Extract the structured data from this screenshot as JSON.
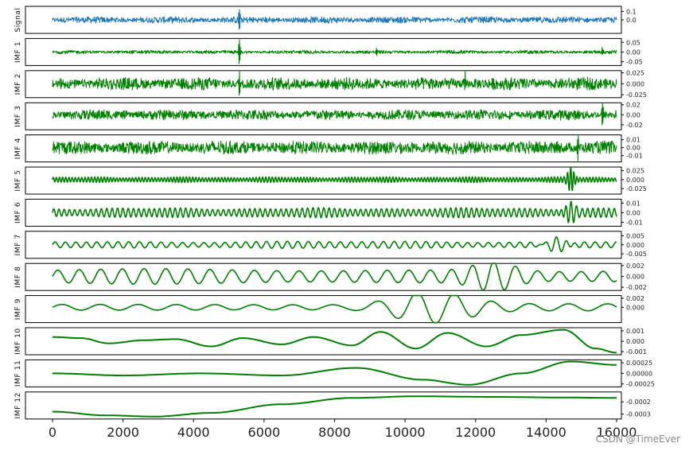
{
  "chart_data": {
    "type": "line",
    "xlim": [
      0,
      16000
    ],
    "xticks": [
      "0",
      "2000",
      "4000",
      "6000",
      "8000",
      "10000",
      "12000",
      "14000",
      "16000"
    ],
    "grid": false,
    "colors": {
      "signal": "#1f77b4",
      "imf": "#008000"
    },
    "panels": [
      {
        "ylabel": "Signal",
        "color": "#1f77b4",
        "ylim": [
          -0.16,
          0.16
        ],
        "yticks": [
          "0.1",
          "0.0"
        ],
        "ytick_values": [
          0.1,
          0.0
        ],
        "kind": "noise",
        "amp": 0.03,
        "spikes": [
          [
            5300,
            0.15
          ]
        ]
      },
      {
        "ylabel": "IMF 1",
        "color": "#008000",
        "ylim": [
          -0.07,
          0.07
        ],
        "yticks": [
          "0.05",
          "0.00",
          "-0.05"
        ],
        "ytick_values": [
          0.05,
          0.0,
          -0.05
        ],
        "kind": "noise",
        "amp": 0.007,
        "spikes": [
          [
            5300,
            0.06
          ],
          [
            9200,
            0.015
          ],
          [
            15600,
            0.02
          ]
        ]
      },
      {
        "ylabel": "IMF 2",
        "color": "#008000",
        "ylim": [
          -0.032,
          0.03
        ],
        "yticks": [
          "0.025",
          "0.000",
          "-0.025"
        ],
        "ytick_values": [
          0.025,
          0.0,
          -0.025
        ],
        "kind": "noise",
        "amp": 0.011,
        "spikes": [
          [
            5300,
            0.028
          ],
          [
            11700,
            0.024
          ]
        ]
      },
      {
        "ylabel": "IMF 3",
        "color": "#008000",
        "ylim": [
          -0.03,
          0.024
        ],
        "yticks": [
          "0.02",
          "0.00",
          "-0.02"
        ],
        "ytick_values": [
          0.02,
          0.0,
          -0.02
        ],
        "kind": "noise",
        "amp": 0.008,
        "spikes": [
          [
            15600,
            -0.02
          ]
        ]
      },
      {
        "ylabel": "IMF 4",
        "color": "#008000",
        "ylim": [
          -0.018,
          0.016
        ],
        "yticks": [
          "0.01",
          "0.00",
          "-0.01"
        ],
        "ytick_values": [
          0.01,
          0.0,
          -0.01
        ],
        "kind": "noise",
        "amp": 0.0065,
        "spikes": [
          [
            14900,
            -0.014
          ]
        ]
      },
      {
        "ylabel": "IMF 5",
        "color": "#008000",
        "ylim": [
          -0.04,
          0.035
        ],
        "yticks": [
          "0.025",
          "0.000",
          "-0.025"
        ],
        "ytick_values": [
          0.025,
          0.0,
          -0.025
        ],
        "kind": "wave",
        "period": 90,
        "amp": 0.006,
        "spikes": [
          [
            14700,
            0.03
          ]
        ]
      },
      {
        "ylabel": "IMF 6",
        "color": "#008000",
        "ylim": [
          -0.014,
          0.014
        ],
        "yticks": [
          "0.01",
          "0.00",
          "-0.01"
        ],
        "ytick_values": [
          0.01,
          0.0,
          -0.01
        ],
        "kind": "wave",
        "period": 150,
        "amp": 0.004,
        "spikes": [
          [
            14700,
            0.011
          ]
        ]
      },
      {
        "ylabel": "IMF 7",
        "color": "#008000",
        "ylim": [
          -0.0075,
          0.0075
        ],
        "yticks": [
          "0.005",
          "0.000",
          "-0.005"
        ],
        "ytick_values": [
          0.005,
          0.0,
          -0.005
        ],
        "kind": "wave",
        "period": 300,
        "amp": 0.0016,
        "spikes": [
          [
            14300,
            0.006
          ]
        ]
      },
      {
        "ylabel": "IMF 8",
        "color": "#008000",
        "ylim": [
          -0.0026,
          0.0024
        ],
        "yticks": [
          "0.002",
          "0.000",
          "-0.002"
        ],
        "ytick_values": [
          0.002,
          0.0,
          -0.002
        ],
        "kind": "wave",
        "period": 620,
        "amp": 0.0011,
        "spikes": [
          [
            12500,
            0.0018
          ]
        ]
      },
      {
        "ylabel": "IMF 9",
        "color": "#008000",
        "ylim": [
          -0.0034,
          0.0026
        ],
        "yticks": [
          "0.002",
          "0.000"
        ],
        "ytick_values": [
          0.002,
          0.0
        ],
        "kind": "wave",
        "period": 1100,
        "amp": 0.0006,
        "spikes": [
          [
            10500,
            0.0018
          ],
          [
            10800,
            -0.0025
          ]
        ]
      },
      {
        "ylabel": "IMF 10",
        "color": "#008000",
        "ylim": [
          -0.0013,
          0.0013
        ],
        "yticks": [
          "0.001",
          "0.000",
          "-0.001"
        ],
        "ytick_values": [
          0.001,
          0.0,
          -0.001
        ],
        "kind": "points",
        "x": [
          0,
          800,
          1600,
          2600,
          3500,
          4500,
          5400,
          6500,
          7400,
          8500,
          9300,
          10300,
          11200,
          12300,
          13300,
          14500,
          15400,
          16000
        ],
        "y": [
          0.0004,
          0.0003,
          -0.0002,
          0.0001,
          0.0002,
          -0.0005,
          0.0003,
          -0.0003,
          0.0004,
          -0.0004,
          0.0009,
          -0.0007,
          0.0008,
          -0.0005,
          0.0006,
          0.0011,
          -0.0007,
          -0.0011
        ]
      },
      {
        "ylabel": "IMF 11",
        "color": "#008000",
        "ylim": [
          -0.00032,
          0.00032
        ],
        "yticks": [
          "0.00025",
          "0.00000",
          "-0.00025"
        ],
        "ytick_values": [
          0.00025,
          0.0,
          -0.00025
        ],
        "kind": "points",
        "x": [
          0,
          2000,
          4200,
          6500,
          8600,
          10500,
          11800,
          13300,
          14700,
          16000
        ],
        "y": [
          0.0,
          -5e-05,
          0.0,
          -5e-05,
          0.00013,
          -0.00015,
          -0.00027,
          0.0,
          0.00028,
          0.0002
        ]
      },
      {
        "ylabel": "IMF 12",
        "color": "#008000",
        "ylim": [
          -0.00034,
          -0.00012
        ],
        "yticks": [
          "-0.0002",
          "-0.0003"
        ],
        "ytick_values": [
          -0.0002,
          -0.0003
        ],
        "kind": "points",
        "x": [
          0,
          1500,
          2900,
          4500,
          6500,
          8500,
          10300,
          12500,
          14500,
          16000
        ],
        "y": [
          -0.00028,
          -0.00031,
          -0.00032,
          -0.00029,
          -0.00022,
          -0.000168,
          -0.000155,
          -0.00016,
          -0.000165,
          -0.000168
        ]
      }
    ]
  },
  "watermark": "CSDN @TimeEver"
}
